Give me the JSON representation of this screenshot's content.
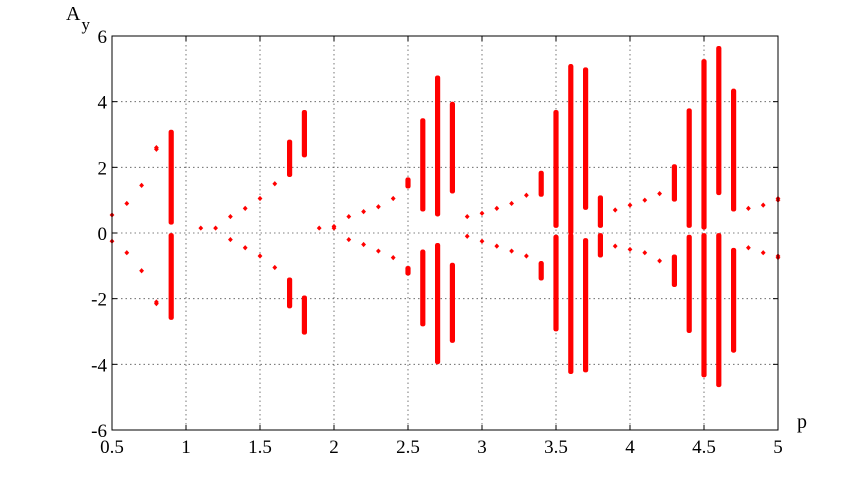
{
  "chart_data": {
    "type": "scatter",
    "title": "",
    "xlabel": "p",
    "ylabel_main": "A",
    "ylabel_sub": "y",
    "xlim": [
      0.5,
      5
    ],
    "ylim": [
      -6,
      6
    ],
    "x_ticks": [
      0.5,
      1,
      1.5,
      2,
      2.5,
      3,
      3.5,
      4,
      4.5,
      5
    ],
    "y_ticks": [
      -6,
      -4,
      -2,
      0,
      2,
      4,
      6
    ],
    "x_tick_labels": [
      "0.5",
      "1",
      "1.5",
      "2",
      "2.5",
      "3",
      "3.5",
      "4",
      "4.5",
      "5"
    ],
    "y_tick_labels": [
      "-6",
      "-4",
      "-2",
      "0",
      "2",
      "4",
      "6"
    ],
    "grid": true,
    "color": "#ff0000",
    "series": [
      {
        "points": [
          [
            0.5,
            0.55
          ],
          [
            0.5,
            -0.25
          ],
          [
            0.6,
            0.9
          ],
          [
            0.6,
            -0.6
          ],
          [
            0.7,
            1.45
          ],
          [
            0.7,
            -1.15
          ],
          [
            0.8,
            2.55
          ],
          [
            0.8,
            2.6
          ],
          [
            0.8,
            -2.1
          ],
          [
            0.8,
            -2.15
          ],
          [
            1.1,
            0.15
          ],
          [
            1.2,
            0.15
          ],
          [
            1.3,
            0.5
          ],
          [
            1.3,
            -0.2
          ],
          [
            1.4,
            0.75
          ],
          [
            1.4,
            -0.45
          ],
          [
            1.5,
            1.05
          ],
          [
            1.5,
            -0.7
          ],
          [
            1.6,
            1.5
          ],
          [
            1.6,
            -1.05
          ],
          [
            1.9,
            0.15
          ],
          [
            2.0,
            0.15
          ],
          [
            2.0,
            0.2
          ],
          [
            2.1,
            0.5
          ],
          [
            2.1,
            -0.2
          ],
          [
            2.2,
            0.65
          ],
          [
            2.2,
            -0.35
          ],
          [
            2.3,
            0.8
          ],
          [
            2.3,
            -0.55
          ],
          [
            2.4,
            1.05
          ],
          [
            2.4,
            -0.75
          ],
          [
            2.9,
            0.5
          ],
          [
            2.9,
            -0.1
          ],
          [
            3.0,
            0.6
          ],
          [
            3.0,
            -0.25
          ],
          [
            3.1,
            0.75
          ],
          [
            3.1,
            -0.4
          ],
          [
            3.2,
            0.9
          ],
          [
            3.2,
            -0.55
          ],
          [
            3.3,
            1.15
          ],
          [
            3.3,
            -0.7
          ],
          [
            3.9,
            0.7
          ],
          [
            3.9,
            -0.4
          ],
          [
            4.0,
            0.85
          ],
          [
            4.0,
            -0.5
          ],
          [
            4.1,
            1.0
          ],
          [
            4.1,
            -0.6
          ],
          [
            4.2,
            1.2
          ],
          [
            4.2,
            -0.85
          ],
          [
            4.8,
            0.75
          ],
          [
            4.8,
            -0.45
          ],
          [
            4.9,
            0.85
          ],
          [
            4.9,
            -0.6
          ],
          [
            5.0,
            1.0
          ],
          [
            5.0,
            1.05
          ],
          [
            5.0,
            -0.7
          ],
          [
            5.0,
            -0.75
          ]
        ],
        "segments": [
          [
            0.9,
            0.3,
            3.1
          ],
          [
            0.9,
            -0.05,
            -2.6
          ],
          [
            1.7,
            1.75,
            2.8
          ],
          [
            1.7,
            -1.4,
            -2.25
          ],
          [
            1.8,
            2.35,
            3.7
          ],
          [
            1.8,
            -1.95,
            -3.05
          ],
          [
            2.5,
            1.4,
            1.65
          ],
          [
            2.5,
            -1.05,
            -1.25
          ],
          [
            2.6,
            0.7,
            3.45
          ],
          [
            2.6,
            -0.55,
            -2.8
          ],
          [
            2.7,
            0.55,
            4.75
          ],
          [
            2.7,
            -0.35,
            -3.95
          ],
          [
            2.8,
            1.25,
            3.95
          ],
          [
            2.8,
            -0.95,
            -3.3
          ],
          [
            3.4,
            1.15,
            1.85
          ],
          [
            3.4,
            -0.9,
            -1.4
          ],
          [
            3.5,
            0.2,
            3.7
          ],
          [
            3.5,
            -0.1,
            -2.95
          ],
          [
            3.6,
            0.0,
            5.1
          ],
          [
            3.6,
            -0.05,
            -4.25
          ],
          [
            3.7,
            0.75,
            5.0
          ],
          [
            3.7,
            -0.2,
            -4.2
          ],
          [
            3.8,
            0.2,
            1.1
          ],
          [
            3.8,
            -0.05,
            -0.7
          ],
          [
            4.3,
            1.0,
            2.05
          ],
          [
            4.3,
            -0.7,
            -1.6
          ],
          [
            4.4,
            0.2,
            3.75
          ],
          [
            4.4,
            -0.1,
            -3.0
          ],
          [
            4.5,
            0.15,
            5.25
          ],
          [
            4.5,
            -0.05,
            -4.35
          ],
          [
            4.6,
            1.2,
            5.65
          ],
          [
            4.6,
            -0.05,
            -4.65
          ],
          [
            4.7,
            0.7,
            4.35
          ],
          [
            4.7,
            -0.5,
            -3.6
          ]
        ]
      }
    ]
  }
}
